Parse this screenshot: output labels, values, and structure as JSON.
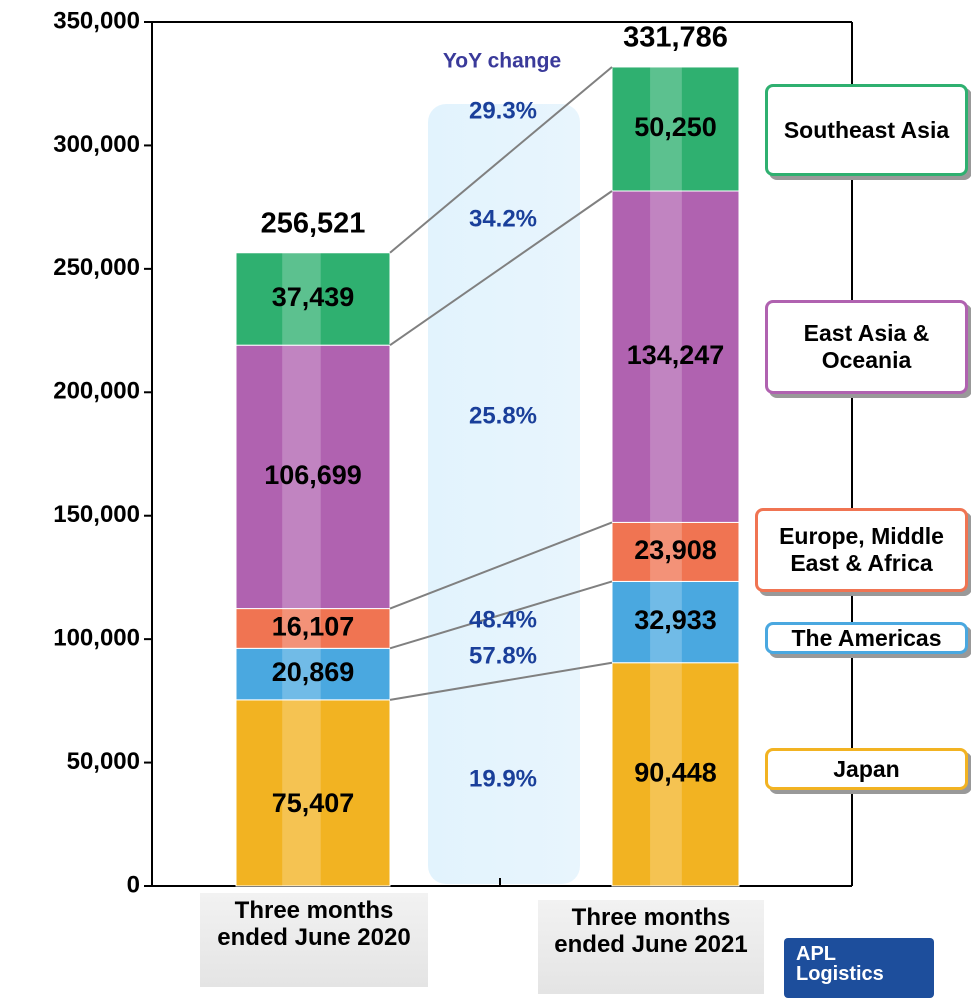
{
  "chart_data": {
    "type": "stacked_bar",
    "categories": [
      "Three months ended June 2020",
      "Three months ended June 2021"
    ],
    "series": [
      {
        "name": "Japan",
        "color": "#f2b322",
        "values": [
          75407,
          90448
        ],
        "value_labels": [
          "75,407",
          "90,448"
        ]
      },
      {
        "name": "The Americas",
        "color": "#4aa8e0",
        "values": [
          20869,
          32933
        ],
        "value_labels": [
          "20,869",
          "32,933"
        ]
      },
      {
        "name": "Europe, Middle East & Africa",
        "color": "#f07452",
        "values": [
          16107,
          23908
        ],
        "value_labels": [
          "16,107",
          "23,908"
        ]
      },
      {
        "name": "East Asia & Oceania",
        "color": "#b062b0",
        "values": [
          106699,
          134247
        ],
        "value_labels": [
          "106,699",
          "134,247"
        ]
      },
      {
        "name": "Southeast Asia",
        "color": "#2fb070",
        "values": [
          37439,
          50250
        ],
        "value_labels": [
          "37,439",
          "50,250"
        ]
      }
    ],
    "totals": [
      256521,
      331786
    ],
    "total_labels": [
      "256,521",
      "331,786"
    ],
    "yoy_change": {
      "label": "YoY change",
      "values": [
        19.9,
        57.8,
        48.4,
        25.8,
        34.2,
        29.3
      ],
      "value_labels": [
        "19.9%",
        "57.8%",
        "48.4%",
        "25.8%",
        "34.2%",
        "29.3%"
      ]
    },
    "ylim": [
      0,
      350000
    ],
    "yticks": [
      0,
      {
        "value": 50000,
        "label": "50,000"
      },
      {
        "value": 100000,
        "label": "100,000"
      },
      {
        "value": 150000,
        "label": "150,000"
      },
      {
        "value": 200000,
        "label": "200,000"
      },
      {
        "value": 250000,
        "label": "250,000"
      },
      {
        "value": 300000,
        "label": "300,000"
      },
      {
        "value": 350000,
        "label": "350,000"
      }
    ],
    "logo": [
      "APL",
      "Logistics"
    ]
  }
}
